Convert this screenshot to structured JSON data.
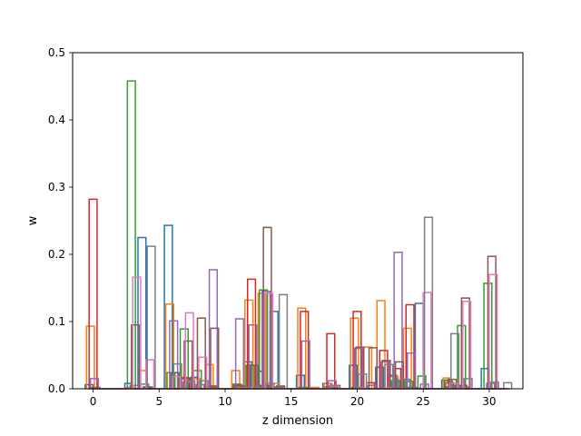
{
  "chart_data": {
    "type": "histogram-step",
    "xlabel": "z dimension",
    "ylabel": "w",
    "xlim": [
      -1.55,
      32.55
    ],
    "ylim": [
      0,
      0.5
    ],
    "xticks": [
      "0",
      "5",
      "10",
      "15",
      "20",
      "25",
      "30"
    ],
    "yticks": [
      "0.0",
      "0.1",
      "0.2",
      "0.3",
      "0.4",
      "0.5"
    ],
    "bins": 32,
    "bin_width": 1,
    "bar_width": 0.6,
    "offsets": [
      -0.3,
      -0.2,
      -0.1,
      0.0,
      0.1,
      0.2,
      0.3,
      0.4
    ],
    "series": [
      {
        "color": "#1f77b4",
        "values": [
          0.006,
          0,
          0,
          0.008,
          0.225,
          0,
          0.243,
          0.015,
          0.017,
          0,
          0,
          0,
          0.04,
          0.026,
          0.115,
          0,
          0.02,
          0,
          0.008,
          0,
          0.035,
          0,
          0.032,
          0.02,
          0.014,
          0.127,
          0,
          0.013,
          0.005,
          0,
          0.03,
          0
        ]
      },
      {
        "color": "#ff7f0e",
        "values": [
          0.093,
          0,
          0,
          0.002,
          0.027,
          0,
          0.126,
          0.017,
          0.015,
          0.036,
          0,
          0.027,
          0.132,
          0.142,
          0.008,
          0,
          0.12,
          0.002,
          0.008,
          0,
          0.105,
          0.062,
          0.131,
          0.018,
          0.09,
          0,
          0,
          0.016,
          0,
          0,
          0,
          0
        ]
      },
      {
        "color": "#2ca02c",
        "values": [
          0,
          0,
          0,
          0.458,
          0.007,
          0,
          0.024,
          0.089,
          0.027,
          0.002,
          0,
          0.007,
          0.035,
          0.147,
          0.001,
          0,
          0.002,
          0,
          0.003,
          0,
          0.002,
          0,
          0,
          0.012,
          0.011,
          0.019,
          0,
          0.012,
          0.094,
          0,
          0.157,
          0
        ]
      },
      {
        "color": "#d62728",
        "values": [
          0.282,
          0,
          0,
          0,
          0,
          0,
          0,
          0.016,
          0,
          0.004,
          0,
          0.005,
          0.163,
          0.005,
          0.003,
          0,
          0.115,
          0,
          0.082,
          0,
          0.115,
          0.009,
          0.057,
          0.03,
          0.125,
          0,
          0,
          0.009,
          0.005,
          0,
          0,
          0
        ]
      },
      {
        "color": "#9467bd",
        "values": [
          0.015,
          0,
          0,
          0.005,
          0.003,
          0,
          0.101,
          0.01,
          0.006,
          0.177,
          0,
          0.104,
          0.095,
          0.145,
          0.003,
          0,
          0.071,
          0,
          0.012,
          0,
          0.06,
          0.005,
          0.04,
          0.203,
          0.053,
          0.007,
          0,
          0.003,
          0.003,
          0,
          0.008,
          0
        ]
      },
      {
        "color": "#8c564b",
        "values": [
          0.002,
          0,
          0,
          0.095,
          0.002,
          0,
          0.024,
          0.071,
          0.105,
          0.09,
          0,
          0.004,
          0.035,
          0.24,
          0.004,
          0,
          0,
          0,
          0.004,
          0,
          0.062,
          0.061,
          0.042,
          0.04,
          0.002,
          0,
          0,
          0.014,
          0.135,
          0,
          0.197,
          0
        ]
      },
      {
        "color": "#e377c2",
        "values": [
          0,
          0,
          0,
          0.166,
          0.043,
          0,
          0.018,
          0.113,
          0.047,
          0,
          0,
          0.002,
          0.002,
          0.142,
          0,
          0,
          0,
          0,
          0.004,
          0,
          0.001,
          0,
          0.001,
          0,
          0.001,
          0.143,
          0,
          0.008,
          0.13,
          0,
          0.17,
          0
        ]
      },
      {
        "color": "#7f7f7f",
        "values": [
          0,
          0,
          0,
          0,
          0.212,
          0,
          0.037,
          0.012,
          0.012,
          0,
          0,
          0.002,
          0.002,
          0.008,
          0.14,
          0,
          0,
          0,
          0.005,
          0,
          0.022,
          0,
          0.036,
          0.013,
          0.001,
          0.255,
          0,
          0.082,
          0.015,
          0,
          0.01,
          0.009
        ]
      }
    ]
  }
}
